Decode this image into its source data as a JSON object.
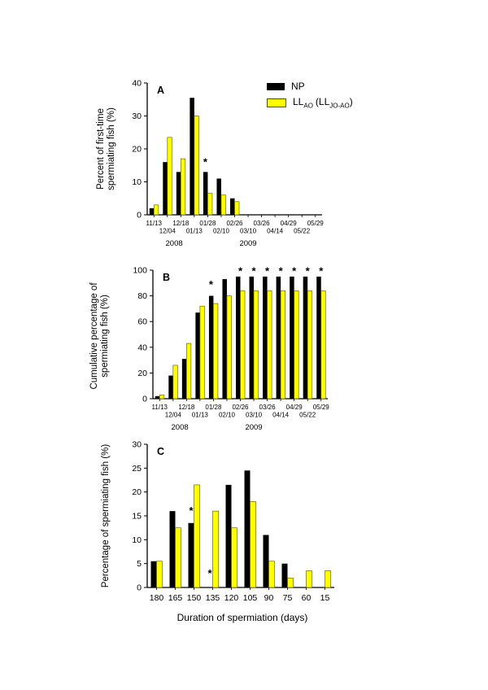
{
  "figure": {
    "legend": {
      "np_label": "NP",
      "ll_base": "LL",
      "ll_sub": "AO",
      "ll_paren": "(LL",
      "ll_paren_sub": "JO-AO",
      "ll_close": ")"
    },
    "colors": {
      "np": "#000000",
      "ll": "#ffff00",
      "ll_outline": "#4d4d00"
    }
  },
  "chart_data": [
    {
      "type": "bar",
      "panel_label": "A",
      "ylabel_line1": "Percent of first-time",
      "ylabel_line2": "spermiating fish (%)",
      "ylim": [
        0,
        40
      ],
      "yticks": [
        0,
        10,
        20,
        30,
        40
      ],
      "categories": [
        "11/13",
        "12/04",
        "12/18",
        "01/13",
        "01/28",
        "02/10",
        "02/26",
        "03/10",
        "03/26",
        "04/14",
        "04/29",
        "05/22",
        "05/29"
      ],
      "series": [
        {
          "name": "NP",
          "color": "#000000",
          "values": [
            2,
            16,
            13,
            35.5,
            13,
            11,
            5,
            0,
            0,
            0,
            0,
            0,
            0
          ]
        },
        {
          "name": "LL_AO",
          "color": "#ffff00",
          "stroke": "#6b6b00",
          "values": [
            3,
            23.5,
            17,
            30,
            6.5,
            6,
            4,
            0,
            0,
            0,
            0,
            0,
            0
          ]
        }
      ],
      "asterisks": [
        {
          "index": 4,
          "dx": -3,
          "y": 15
        }
      ],
      "year_labels": [
        {
          "label": "2008",
          "index": 1.5
        },
        {
          "label": "2009",
          "index": 7
        }
      ]
    },
    {
      "type": "bar",
      "panel_label": "B",
      "ylabel_line1": "Cumulative percentage of",
      "ylabel_line2": "spermiating fish (%)",
      "ylim": [
        0,
        100
      ],
      "yticks": [
        0,
        20,
        40,
        60,
        80,
        100
      ],
      "categories": [
        "11/13",
        "12/04",
        "12/18",
        "01/13",
        "01/28",
        "02/10",
        "02/26",
        "03/10",
        "03/26",
        "04/14",
        "04/29",
        "05/22",
        "05/29"
      ],
      "series": [
        {
          "name": "NP",
          "color": "#000000",
          "values": [
            2,
            18,
            31,
            67,
            80,
            93,
            95,
            95,
            95,
            95,
            95,
            95,
            95
          ]
        },
        {
          "name": "LL_AO",
          "color": "#ffff00",
          "stroke": "#6b6b00",
          "values": [
            3,
            26,
            43,
            72,
            74,
            80,
            84,
            84,
            84,
            84,
            84,
            84,
            84
          ]
        }
      ],
      "asterisks": [
        {
          "index": 4,
          "dx": -3,
          "y": 86
        },
        {
          "index": 6,
          "y": 96.5
        },
        {
          "index": 7,
          "y": 96.5
        },
        {
          "index": 8,
          "y": 96.5
        },
        {
          "index": 9,
          "y": 96.5
        },
        {
          "index": 10,
          "y": 96.5
        },
        {
          "index": 11,
          "y": 96.5
        },
        {
          "index": 12,
          "y": 96.5
        }
      ],
      "year_labels": [
        {
          "label": "2008",
          "index": 1.5
        },
        {
          "label": "2009",
          "index": 7
        }
      ]
    },
    {
      "type": "bar",
      "panel_label": "C",
      "ylabel_line1": "Percentage of spermiating fish (%)",
      "xlabel": "Duration of spermiation (days)",
      "ylim": [
        0,
        30
      ],
      "yticks": [
        0,
        5,
        10,
        15,
        20,
        25,
        30
      ],
      "categories": [
        "180",
        "165",
        "150",
        "135",
        "120",
        "105",
        "90",
        "75",
        "60",
        "15"
      ],
      "series": [
        {
          "name": "NP",
          "color": "#000000",
          "values": [
            5.5,
            16,
            13.5,
            0,
            21.5,
            24.5,
            11,
            5,
            0,
            0
          ]
        },
        {
          "name": "LL_AO",
          "color": "#ffff00",
          "stroke": "#6b6b00",
          "values": [
            5.5,
            12.5,
            21.5,
            16,
            12.5,
            18,
            5.5,
            2,
            3.5,
            3.5
          ]
        }
      ],
      "asterisks": [
        {
          "index": 2,
          "dx": -3.5,
          "y": 15.3
        },
        {
          "index": 3,
          "dx": -3.5,
          "y": 2.2
        }
      ]
    }
  ]
}
